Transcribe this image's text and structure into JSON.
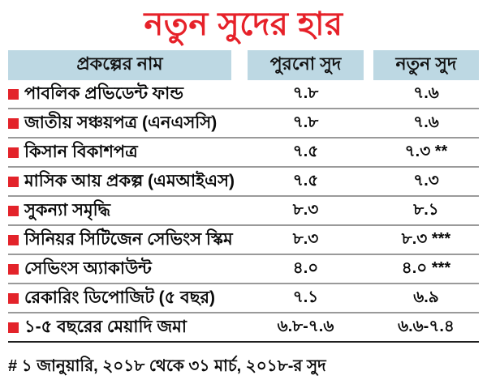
{
  "title": "নতুন সুদের হার",
  "colors": {
    "title_red": "#e62129",
    "bullet_red": "#e3232a",
    "header_bg": "#bdd8e3",
    "row_separator": "#9a9a9a",
    "bottom_separator": "#1f1f1f",
    "text": "#0a0a0a"
  },
  "table": {
    "headers": {
      "name": "প্রকল্পের নাম",
      "old": "পুরনো সুদ",
      "new": "নতুন সুদ"
    },
    "rows": [
      {
        "name": "পাবলিক প্রভিডেন্ট ফান্ড",
        "old": "৭.৮",
        "new": "৭.৬"
      },
      {
        "name": "জাতীয় সঞ্চয়পত্র (এনএসসি)",
        "old": "৭.৮",
        "new": "৭.৬"
      },
      {
        "name": "কিসান বিকাশপত্র",
        "old": "৭.৫",
        "new": "৭.৩ **"
      },
      {
        "name": "মাসিক আয় প্রকল্প (এমআইএস)",
        "old": "৭.৫",
        "new": "৭.৩"
      },
      {
        "name": "সুকন্যা সমৃদ্ধি",
        "old": "৮.৩",
        "new": "৮.১"
      },
      {
        "name": "সিনিয়র সিটিজেন সেভিংস স্কিম",
        "old": "৮.৩",
        "new": "৮.৩ ***"
      },
      {
        "name": "সেভিংস অ্যাকাউন্ট",
        "old": "৪.০",
        "new": "৪.০ ***"
      },
      {
        "name": "রেকারিং ডিপোজিট (৫ বছর)",
        "old": "৭.১",
        "new": "৬.৯"
      },
      {
        "name": "১-৫ বছরের মেয়াদি জমা",
        "old": "৬.৮-৭.৬",
        "new": "৬.৬-৭.৪"
      }
    ]
  },
  "footnote": "# ১ জানুয়ারি, ২০১৮ থেকে ৩১ মার্চ, ২০১৮-র সুদ",
  "chart_data": {
    "type": "table",
    "title": "নতুন সুদের হার",
    "columns": [
      "প্রকল্পের নাম",
      "পুরনো সুদ",
      "নতুন সুদ"
    ],
    "rows": [
      {
        "name": "পাবলিক প্রভিডেন্ট ফান্ড",
        "old_rate": 7.8,
        "new_rate": 7.6,
        "note": ""
      },
      {
        "name": "জাতীয় সঞ্চয়পত্র (এনএসসি)",
        "old_rate": 7.8,
        "new_rate": 7.6,
        "note": ""
      },
      {
        "name": "কিসান বিকাশপত্র",
        "old_rate": 7.5,
        "new_rate": 7.3,
        "note": "**"
      },
      {
        "name": "মাসিক আয় প্রকল্প (এমআইএস)",
        "old_rate": 7.5,
        "new_rate": 7.3,
        "note": ""
      },
      {
        "name": "সুকন্যা সমৃদ্ধি",
        "old_rate": 8.3,
        "new_rate": 8.1,
        "note": ""
      },
      {
        "name": "সিনিয়র সিটিজেন সেভিংস স্কিম",
        "old_rate": 8.3,
        "new_rate": 8.3,
        "note": "***"
      },
      {
        "name": "সেভিংস অ্যাকাউন্ট",
        "old_rate": 4.0,
        "new_rate": 4.0,
        "note": "***"
      },
      {
        "name": "রেকারিং ডিপোজিট (৫ বছর)",
        "old_rate": 7.1,
        "new_rate": 6.9,
        "note": ""
      },
      {
        "name": "১-৫ বছরের মেয়াদি জমা",
        "old_rate": "6.8-7.6",
        "new_rate": "6.6-7.4",
        "note": ""
      }
    ],
    "footnote": "# ১ জানুয়ারি, ২০১৮ থেকে ৩১ মার্চ, ২০১৮-র সুদ"
  }
}
